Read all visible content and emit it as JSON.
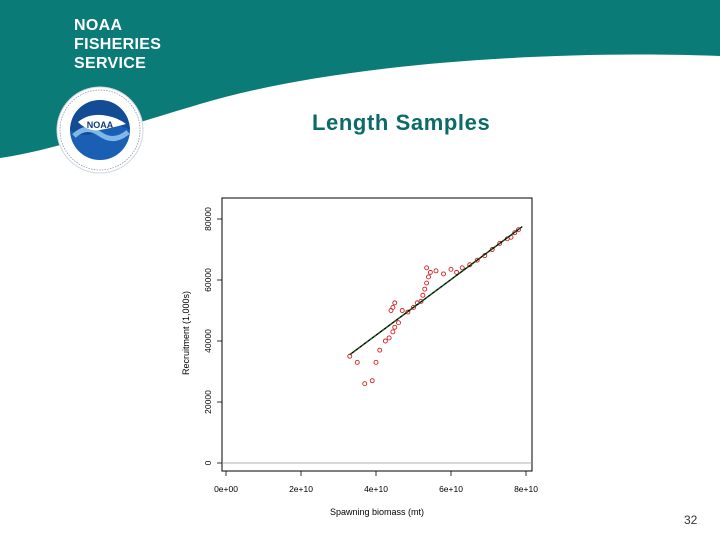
{
  "header": {
    "org_lines": [
      "NOAA",
      "FISHERIES",
      "SERVICE"
    ],
    "logo_text": "NOAA",
    "colors": {
      "banner": "#0b7b78",
      "logo_blue": "#1a5fb4",
      "logo_light": "#7fb8e6"
    }
  },
  "slide": {
    "title": "Length Samples",
    "page_number": "32"
  },
  "chart_data": {
    "type": "scatter",
    "title": "",
    "xlabel": "Spawning biomass (mt)",
    "ylabel": "Recruitment (1,000s)",
    "xlim": [
      0,
      80000000000
    ],
    "ylim": [
      0,
      80000
    ],
    "x_ticks": [
      "0e+00",
      "2e+10",
      "4e+10",
      "6e+10",
      "8e+10"
    ],
    "y_ticks": [
      "0",
      "20000",
      "40000",
      "60000",
      "80000"
    ],
    "grid": false,
    "colors": {
      "points": "#d62020",
      "fit_line": "#0a6a0a",
      "line_overlay": "#000000"
    },
    "series": [
      {
        "type": "scatter",
        "x": [
          33000000000.0,
          35000000000.0,
          37000000000.0,
          39000000000.0,
          40000000000.0,
          41000000000.0,
          42500000000.0,
          43500000000.0,
          44500000000.0,
          45000000000.0,
          46000000000.0,
          44000000000.0,
          44500000000.0,
          45000000000.0,
          47000000000.0,
          48500000000.0,
          50000000000.0,
          51000000000.0,
          52000000000.0,
          52500000000.0,
          53000000000.0,
          53500000000.0,
          54000000000.0,
          54500000000.0,
          53500000000.0,
          56000000000.0,
          58000000000.0,
          60000000000.0,
          61500000000.0,
          63000000000.0,
          65000000000.0,
          67000000000.0,
          69000000000.0,
          71000000000.0,
          73000000000.0,
          75000000000.0,
          76000000000.0,
          77000000000.0,
          78000000000.0
        ],
        "y": [
          35000,
          33000,
          26000,
          27000,
          33000,
          37000,
          40000,
          41000,
          43000,
          44500,
          46000,
          50000,
          51000,
          52500,
          50000,
          49500,
          51000,
          52500,
          53000,
          55000,
          57000,
          59000,
          61000,
          62500,
          64000,
          63000,
          62000,
          63500,
          62500,
          64000,
          65000,
          66500,
          68000,
          70000,
          72000,
          73500,
          74000,
          75500,
          76500
        ]
      },
      {
        "type": "line",
        "x": [
          33000000000.0,
          79000000000.0
        ],
        "y": [
          35500,
          77500
        ]
      }
    ]
  }
}
